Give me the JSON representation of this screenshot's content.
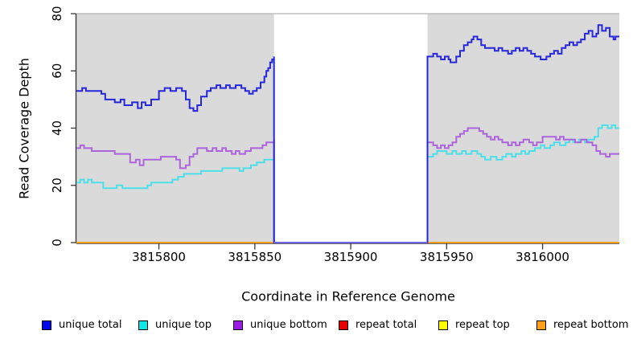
{
  "figure": {
    "panel_background": "#DADADA",
    "panel_top_line_color": "#b4b4b4",
    "axis_color": "#383838",
    "text_color": "#000000"
  },
  "chart_data": {
    "type": "line",
    "subtype": "step-coverage",
    "title": "",
    "xlabel": "Coordinate in Reference Genome",
    "ylabel": "Read Coverage Depth",
    "xlim": [
      3815757,
      3816040
    ],
    "ylim": [
      0,
      80
    ],
    "x_ticks": [
      3815800,
      3815850,
      3815900,
      3815950,
      3816000
    ],
    "y_ticks": [
      0,
      20,
      40,
      60,
      80
    ],
    "grid": false,
    "legend_position": "bottom",
    "shaded_regions": [
      {
        "x0": 3815757,
        "x1": 3815860,
        "color": "#DADADA"
      },
      {
        "x0": 3815940,
        "x1": 3816040,
        "color": "#DADADA"
      }
    ],
    "gap_region": {
      "x0": 3815860,
      "x1": 3815940,
      "baseline_color": "#6F63E8"
    },
    "series": [
      {
        "name": "repeat top",
        "color": "#FFFF00",
        "points": [
          [
            3815757,
            0
          ],
          [
            3816040,
            0
          ]
        ]
      },
      {
        "name": "repeat total",
        "color": "#E60000",
        "points": [
          [
            3815757,
            0
          ],
          [
            3816040,
            0
          ]
        ]
      },
      {
        "name": "repeat bottom",
        "color": "#FFA018",
        "points": [
          [
            3815757,
            0
          ],
          [
            3816040,
            0
          ]
        ]
      },
      {
        "name": "unique top",
        "color": "#4DDFE8",
        "points": [
          [
            3815757,
            21
          ],
          [
            3815759,
            22
          ],
          [
            3815761,
            21
          ],
          [
            3815763,
            22
          ],
          [
            3815765,
            21
          ],
          [
            3815771,
            19
          ],
          [
            3815778,
            20
          ],
          [
            3815781,
            19
          ],
          [
            3815794,
            20
          ],
          [
            3815796,
            21
          ],
          [
            3815805,
            21
          ],
          [
            3815807,
            22
          ],
          [
            3815810,
            23
          ],
          [
            3815813,
            24
          ],
          [
            3815819,
            24
          ],
          [
            3815822,
            25
          ],
          [
            3815830,
            25
          ],
          [
            3815833,
            26
          ],
          [
            3815839,
            26
          ],
          [
            3815842,
            25
          ],
          [
            3815844,
            26
          ],
          [
            3815848,
            27
          ],
          [
            3815851,
            28
          ],
          [
            3815855,
            29
          ],
          [
            3815860,
            29
          ],
          [
            3815860,
            0
          ],
          [
            3815940,
            0
          ],
          [
            3815940,
            30
          ],
          [
            3815943,
            31
          ],
          [
            3815945,
            32
          ],
          [
            3815948,
            32
          ],
          [
            3815950,
            31
          ],
          [
            3815953,
            32
          ],
          [
            3815955,
            31
          ],
          [
            3815958,
            32
          ],
          [
            3815960,
            31
          ],
          [
            3815963,
            32
          ],
          [
            3815966,
            31
          ],
          [
            3815968,
            30
          ],
          [
            3815970,
            29
          ],
          [
            3815973,
            30
          ],
          [
            3815976,
            29
          ],
          [
            3815979,
            30
          ],
          [
            3815981,
            31
          ],
          [
            3815984,
            30
          ],
          [
            3815986,
            31
          ],
          [
            3815989,
            32
          ],
          [
            3815991,
            31
          ],
          [
            3815993,
            32
          ],
          [
            3815996,
            33
          ],
          [
            3815999,
            34
          ],
          [
            3816001,
            33
          ],
          [
            3816004,
            34
          ],
          [
            3816006,
            35
          ],
          [
            3816009,
            34
          ],
          [
            3816012,
            35
          ],
          [
            3816014,
            36
          ],
          [
            3816016,
            35
          ],
          [
            3816019,
            36
          ],
          [
            3816022,
            35
          ],
          [
            3816024,
            36
          ],
          [
            3816027,
            37
          ],
          [
            3816029,
            40
          ],
          [
            3816031,
            41
          ],
          [
            3816034,
            40
          ],
          [
            3816036,
            41
          ],
          [
            3816038,
            40
          ]
        ]
      },
      {
        "name": "unique bottom",
        "color": "#AC64DC",
        "points": [
          [
            3815757,
            33
          ],
          [
            3815759,
            34
          ],
          [
            3815761,
            33
          ],
          [
            3815765,
            32
          ],
          [
            3815775,
            32
          ],
          [
            3815777,
            31
          ],
          [
            3815783,
            31
          ],
          [
            3815785,
            28
          ],
          [
            3815788,
            29
          ],
          [
            3815790,
            27
          ],
          [
            3815792,
            29
          ],
          [
            3815799,
            29
          ],
          [
            3815801,
            30
          ],
          [
            3815807,
            30
          ],
          [
            3815809,
            29
          ],
          [
            3815811,
            26
          ],
          [
            3815814,
            27
          ],
          [
            3815816,
            30
          ],
          [
            3815818,
            31
          ],
          [
            3815820,
            33
          ],
          [
            3815823,
            33
          ],
          [
            3815825,
            32
          ],
          [
            3815828,
            33
          ],
          [
            3815830,
            32
          ],
          [
            3815833,
            33
          ],
          [
            3815835,
            32
          ],
          [
            3815838,
            31
          ],
          [
            3815840,
            32
          ],
          [
            3815842,
            31
          ],
          [
            3815845,
            32
          ],
          [
            3815848,
            33
          ],
          [
            3815851,
            33
          ],
          [
            3815854,
            34
          ],
          [
            3815856,
            35
          ],
          [
            3815860,
            36
          ],
          [
            3815860,
            0
          ],
          [
            3815940,
            0
          ],
          [
            3815940,
            35
          ],
          [
            3815943,
            34
          ],
          [
            3815945,
            33
          ],
          [
            3815947,
            34
          ],
          [
            3815949,
            33
          ],
          [
            3815951,
            34
          ],
          [
            3815953,
            35
          ],
          [
            3815955,
            37
          ],
          [
            3815957,
            38
          ],
          [
            3815959,
            39
          ],
          [
            3815961,
            40
          ],
          [
            3815965,
            40
          ],
          [
            3815967,
            39
          ],
          [
            3815969,
            38
          ],
          [
            3815971,
            37
          ],
          [
            3815973,
            36
          ],
          [
            3815975,
            37
          ],
          [
            3815977,
            36
          ],
          [
            3815979,
            35
          ],
          [
            3815982,
            34
          ],
          [
            3815984,
            35
          ],
          [
            3815986,
            34
          ],
          [
            3815988,
            35
          ],
          [
            3815990,
            36
          ],
          [
            3815993,
            35
          ],
          [
            3815995,
            34
          ],
          [
            3815997,
            35
          ],
          [
            3816000,
            37
          ],
          [
            3816004,
            37
          ],
          [
            3816007,
            36
          ],
          [
            3816009,
            37
          ],
          [
            3816011,
            36
          ],
          [
            3816015,
            36
          ],
          [
            3816017,
            35
          ],
          [
            3816020,
            36
          ],
          [
            3816023,
            35
          ],
          [
            3816026,
            34
          ],
          [
            3816028,
            32
          ],
          [
            3816030,
            31
          ],
          [
            3816033,
            30
          ],
          [
            3816035,
            31
          ],
          [
            3816038,
            31
          ]
        ]
      },
      {
        "name": "unique total",
        "color": "#2626DA",
        "points": [
          [
            3815757,
            53
          ],
          [
            3815760,
            54
          ],
          [
            3815762,
            53
          ],
          [
            3815770,
            52
          ],
          [
            3815772,
            50
          ],
          [
            3815777,
            49
          ],
          [
            3815780,
            50
          ],
          [
            3815782,
            48
          ],
          [
            3815786,
            49
          ],
          [
            3815789,
            47
          ],
          [
            3815791,
            49
          ],
          [
            3815793,
            48
          ],
          [
            3815796,
            50
          ],
          [
            3815800,
            53
          ],
          [
            3815803,
            54
          ],
          [
            3815806,
            53
          ],
          [
            3815809,
            54
          ],
          [
            3815812,
            53
          ],
          [
            3815814,
            50
          ],
          [
            3815816,
            47
          ],
          [
            3815818,
            46
          ],
          [
            3815820,
            48
          ],
          [
            3815822,
            51
          ],
          [
            3815825,
            53
          ],
          [
            3815827,
            54
          ],
          [
            3815830,
            55
          ],
          [
            3815832,
            54
          ],
          [
            3815835,
            55
          ],
          [
            3815837,
            54
          ],
          [
            3815840,
            55
          ],
          [
            3815843,
            54
          ],
          [
            3815845,
            53
          ],
          [
            3815847,
            52
          ],
          [
            3815849,
            53
          ],
          [
            3815851,
            54
          ],
          [
            3815853,
            56
          ],
          [
            3815855,
            58
          ],
          [
            3815856,
            60
          ],
          [
            3815857,
            61
          ],
          [
            3815858,
            63
          ],
          [
            3815859,
            64
          ],
          [
            3815860,
            65
          ],
          [
            3815860,
            0
          ],
          [
            3815940,
            0
          ],
          [
            3815940,
            65
          ],
          [
            3815943,
            66
          ],
          [
            3815945,
            65
          ],
          [
            3815947,
            64
          ],
          [
            3815949,
            65
          ],
          [
            3815951,
            64
          ],
          [
            3815952,
            63
          ],
          [
            3815955,
            65
          ],
          [
            3815957,
            67
          ],
          [
            3815959,
            69
          ],
          [
            3815961,
            70
          ],
          [
            3815963,
            71
          ],
          [
            3815964,
            72
          ],
          [
            3815966,
            71
          ],
          [
            3815968,
            69
          ],
          [
            3815970,
            68
          ],
          [
            3815973,
            68
          ],
          [
            3815975,
            67
          ],
          [
            3815977,
            68
          ],
          [
            3815979,
            67
          ],
          [
            3815982,
            66
          ],
          [
            3815984,
            67
          ],
          [
            3815986,
            68
          ],
          [
            3815988,
            67
          ],
          [
            3815990,
            68
          ],
          [
            3815992,
            67
          ],
          [
            3815994,
            66
          ],
          [
            3815996,
            65
          ],
          [
            3815999,
            64
          ],
          [
            3816002,
            65
          ],
          [
            3816004,
            66
          ],
          [
            3816006,
            67
          ],
          [
            3816008,
            66
          ],
          [
            3816010,
            68
          ],
          [
            3816012,
            69
          ],
          [
            3816014,
            70
          ],
          [
            3816016,
            69
          ],
          [
            3816018,
            70
          ],
          [
            3816020,
            71
          ],
          [
            3816022,
            73
          ],
          [
            3816024,
            74
          ],
          [
            3816026,
            72
          ],
          [
            3816028,
            73
          ],
          [
            3816029,
            76
          ],
          [
            3816031,
            74
          ],
          [
            3816033,
            75
          ],
          [
            3816035,
            72
          ],
          [
            3816037,
            71
          ],
          [
            3816038,
            72
          ]
        ]
      }
    ],
    "legend": [
      {
        "label": "unique total",
        "color": "#0404EE"
      },
      {
        "label": "unique top",
        "color": "#10E8E8"
      },
      {
        "label": "unique bottom",
        "color": "#9C1BEB"
      },
      {
        "label": "repeat total",
        "color": "#E60000"
      },
      {
        "label": "repeat top",
        "color": "#FFFF00"
      },
      {
        "label": "repeat bottom",
        "color": "#FFA018"
      }
    ]
  }
}
